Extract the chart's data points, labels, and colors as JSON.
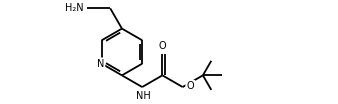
{
  "bg_color": "#ffffff",
  "line_color": "#000000",
  "line_width": 1.3,
  "font_size": 7.0,
  "figsize": [
    3.38,
    1.04
  ],
  "dpi": 100,
  "xlim": [
    0.0,
    10.0
  ],
  "ylim": [
    0.0,
    3.1
  ]
}
